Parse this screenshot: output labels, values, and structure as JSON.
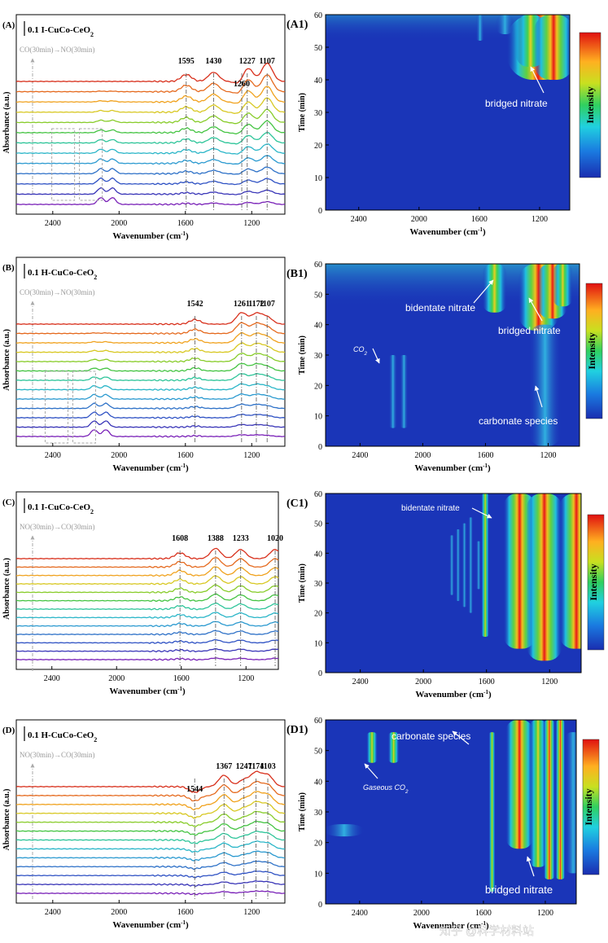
{
  "chart_data": [
    {
      "type": "line",
      "panel_label": "(A)",
      "scale_label": "0.1",
      "sample": "I-CuCo-CeO",
      "subscript": "2",
      "sequence": "CO(30min)→NO(30min)",
      "xlabel": "Wavenumber (cm",
      "xlabel_sup": "-1",
      "xlabel_end": ")",
      "ylabel": "Absorbance (a.u.)",
      "xlim": [
        2620,
        1000
      ],
      "xticks": [
        "2400",
        "2000",
        "1600",
        "1200"
      ],
      "xtick_values": [
        2400,
        2000,
        1600,
        1200
      ],
      "n_spectra": 13,
      "peaks": [
        {
          "label": "1595",
          "wn": 1595,
          "amp": 0.6
        },
        {
          "label": "1430",
          "wn": 1430,
          "amp": 0.8
        },
        {
          "label": "1227",
          "wn": 1227,
          "amp": 1.4
        },
        {
          "label": "1260",
          "wn": 1260,
          "amp": -0.5
        },
        {
          "label": "1107",
          "wn": 1107,
          "amp": 1.6
        }
      ],
      "co_band": 2110
    },
    {
      "type": "heatmap",
      "panel_label": "(A1)",
      "xlabel": "Wavenumber (cm",
      "xlabel_sup": "-1",
      "xlabel_end": ")",
      "ylabel": "Time (min)",
      "xlim": [
        2620,
        1000
      ],
      "ylim": [
        0,
        60
      ],
      "xticks": [
        "2400",
        "2000",
        "1600",
        "1200"
      ],
      "xtick_values": [
        2400,
        2000,
        1600,
        1200
      ],
      "yticks": [
        "0",
        "10",
        "20",
        "30",
        "40",
        "50",
        "60"
      ],
      "colorbar_label": "Intensity",
      "annotations": [
        {
          "text": "bridged nitrate"
        }
      ]
    },
    {
      "type": "line",
      "panel_label": "(B)",
      "scale_label": "0.1",
      "sample": "H-CuCo-CeO",
      "subscript": "2",
      "sequence": "CO(30min)→NO(30min)",
      "xlabel": "Wavenumber (cm",
      "xlabel_sup": "-1",
      "xlabel_end": ")",
      "ylabel": "Absorbance (a.u.)",
      "xlim": [
        2620,
        1000
      ],
      "xticks": [
        "2400",
        "2000",
        "1600",
        "1200"
      ],
      "xtick_values": [
        2400,
        2000,
        1600,
        1200
      ],
      "n_spectra": 13,
      "peaks": [
        {
          "label": "1542",
          "wn": 1542,
          "amp": 0.4
        },
        {
          "label": "1261",
          "wn": 1261,
          "amp": 1.0
        },
        {
          "label": "1172",
          "wn": 1172,
          "amp": 0.9
        },
        {
          "label": "1107",
          "wn": 1107,
          "amp": 0.6
        }
      ],
      "co_band": 2150
    },
    {
      "type": "heatmap",
      "panel_label": "(B1)",
      "xlabel": "Wavenumber (cm",
      "xlabel_sup": "-1",
      "xlabel_end": ")",
      "ylabel": "Time (min)",
      "xlim": [
        2620,
        1000
      ],
      "ylim": [
        0,
        60
      ],
      "xticks": [
        "2400",
        "2000",
        "1600",
        "1200"
      ],
      "xtick_values": [
        2400,
        2000,
        1600,
        1200
      ],
      "yticks": [
        "0",
        "10",
        "20",
        "30",
        "40",
        "50",
        "60"
      ],
      "colorbar_label": "Intensity",
      "annotations": [
        {
          "text": "bidentate nitrate"
        },
        {
          "text": "bridged nitrate"
        },
        {
          "text": "CO",
          "sub": "2"
        },
        {
          "text": "carbonate species"
        }
      ]
    },
    {
      "type": "line",
      "panel_label": "(C)",
      "scale_label": "0.1",
      "sample": "I-CuCo-CeO",
      "subscript": "2",
      "sequence": "NO(30min)→CO(30min)",
      "xlabel": "Wavenumber (cm",
      "xlabel_sup": "-1",
      "xlabel_end": ")",
      "ylabel": "Absorbance (a.u.)",
      "xlim": [
        2620,
        1000
      ],
      "xticks": [
        "2400",
        "2000",
        "1600",
        "1200"
      ],
      "xtick_values": [
        2400,
        2000,
        1600,
        1200
      ],
      "n_spectra": 13,
      "peaks": [
        {
          "label": "1608",
          "wn": 1608,
          "amp": 0.5
        },
        {
          "label": "1388",
          "wn": 1388,
          "amp": 0.9
        },
        {
          "label": "1233",
          "wn": 1233,
          "amp": 0.8
        },
        {
          "label": "1020",
          "wn": 1020,
          "amp": 0.8
        }
      ],
      "co_band": 0
    },
    {
      "type": "heatmap",
      "panel_label": "(C1)",
      "xlabel": "Wavenumber (cm",
      "xlabel_sup": "-1",
      "xlabel_end": ")",
      "ylabel": "Time (min)",
      "xlim": [
        2620,
        1000
      ],
      "ylim": [
        0,
        60
      ],
      "xticks": [
        "2400",
        "2000",
        "1600",
        "1200"
      ],
      "xtick_values": [
        2400,
        2000,
        1600,
        1200
      ],
      "yticks": [
        "0",
        "10",
        "20",
        "30",
        "40",
        "50",
        "60"
      ],
      "colorbar_label": "Intensity",
      "annotations": [
        {
          "text": "bidentate nitrate"
        }
      ]
    },
    {
      "type": "line",
      "panel_label": "(D)",
      "scale_label": "0.1",
      "sample": "H-CuCo-CeO",
      "subscript": "2",
      "sequence": "NO(30min)→CO(30min)",
      "xlabel": "Wavenumber (cm",
      "xlabel_sup": "-1",
      "xlabel_end": ")",
      "ylabel": "Absorbance (a.u.)",
      "xlim": [
        2620,
        1000
      ],
      "xticks": [
        "2400",
        "2000",
        "1600",
        "1200"
      ],
      "xtick_values": [
        2400,
        2000,
        1600,
        1200
      ],
      "n_spectra": 13,
      "peaks": [
        {
          "label": "1544",
          "wn": 1544,
          "amp": -0.5
        },
        {
          "label": "1367",
          "wn": 1367,
          "amp": 1.0
        },
        {
          "label": "1247",
          "wn": 1247,
          "amp": 0.6
        },
        {
          "label": "1174",
          "wn": 1174,
          "amp": 1.2
        },
        {
          "label": "1103",
          "wn": 1103,
          "amp": 1.0
        }
      ],
      "co_band": 0
    },
    {
      "type": "heatmap",
      "panel_label": "(D1)",
      "xlabel": "Wavenumber (cm",
      "xlabel_sup": "-1",
      "xlabel_end": ")",
      "ylabel": "Time (min)",
      "xlim": [
        2620,
        1000
      ],
      "ylim": [
        0,
        60
      ],
      "xticks": [
        "2400",
        "2000",
        "1600",
        "1200"
      ],
      "xtick_values": [
        2400,
        2000,
        1600,
        1200
      ],
      "yticks": [
        "0",
        "10",
        "20",
        "30",
        "40",
        "50",
        "60"
      ],
      "colorbar_label": "Intensity",
      "annotations": [
        {
          "text": "carbonate species"
        },
        {
          "text": "Gaseous CO",
          "sub": "2"
        },
        {
          "text": "bridged nitrate"
        }
      ]
    }
  ],
  "colors": {
    "spectra": [
      "#7a22b8",
      "#3a36b8",
      "#2f52c4",
      "#2f72c8",
      "#2b9ad0",
      "#2bb6c8",
      "#2fc59a",
      "#45c443",
      "#88cc2a",
      "#d8c823",
      "#f0a21e",
      "#e56a1f",
      "#d8301c"
    ],
    "heat_bg": "#1a35b8"
  },
  "watermark": {
    "text": "知乎 @科学材料站"
  }
}
